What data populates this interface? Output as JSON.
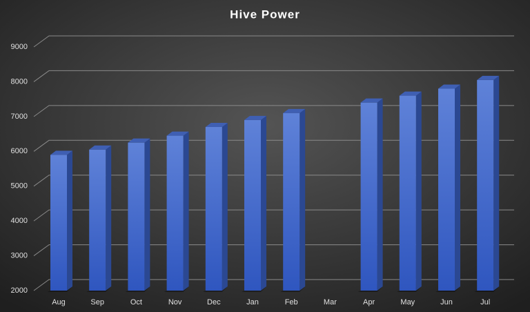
{
  "chart_data": {
    "type": "bar3d",
    "title": "Hive Power",
    "categories": [
      "Aug",
      "Sep",
      "Oct",
      "Nov",
      "Dec",
      "Jan",
      "Feb",
      "Mar",
      "Apr",
      "May",
      "Jun",
      "Jul"
    ],
    "values": [
      5900,
      6050,
      6250,
      6450,
      6700,
      6900,
      7100,
      null,
      7400,
      7600,
      7800,
      8050
    ],
    "color": "#4a6fd0",
    "ylim": [
      2000,
      9000
    ],
    "yticks": [
      2000,
      3000,
      4000,
      5000,
      6000,
      7000,
      8000,
      9000
    ],
    "grid": true
  }
}
